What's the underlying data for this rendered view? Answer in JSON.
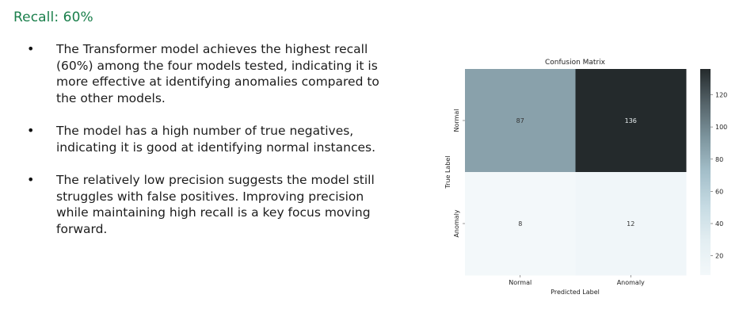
{
  "slide": {
    "heading": "Recall: 60%",
    "bullets": [
      "The Transformer model achieves the highest recall (60%) among the four models tested, indicating it is more effective at identifying anomalies compared to the other models.",
      "The model has a high number of true negatives, indicating it is good at identifying normal instances.",
      "The relatively low precision suggests the model still struggles with false positives. Improving precision while maintaining high recall is a key focus moving forward."
    ],
    "bullet_marker": "•"
  },
  "chart_data": {
    "type": "heatmap",
    "title": "Confusion Matrix",
    "xlabel": "Predicted Label",
    "ylabel": "True Label",
    "x_categories": [
      "Normal",
      "Anomaly"
    ],
    "y_categories": [
      "Normal",
      "Anomaly"
    ],
    "values": [
      [
        87,
        136
      ],
      [
        8,
        12
      ]
    ],
    "colorbar": {
      "ticks": [
        20,
        40,
        60,
        80,
        100,
        120
      ],
      "range": [
        8,
        136
      ]
    },
    "colormap": [
      "#f3f8fa",
      "#e3eef2",
      "#c6dbe3",
      "#a4bfca",
      "#7d959e",
      "#556369",
      "#242a2c"
    ]
  }
}
